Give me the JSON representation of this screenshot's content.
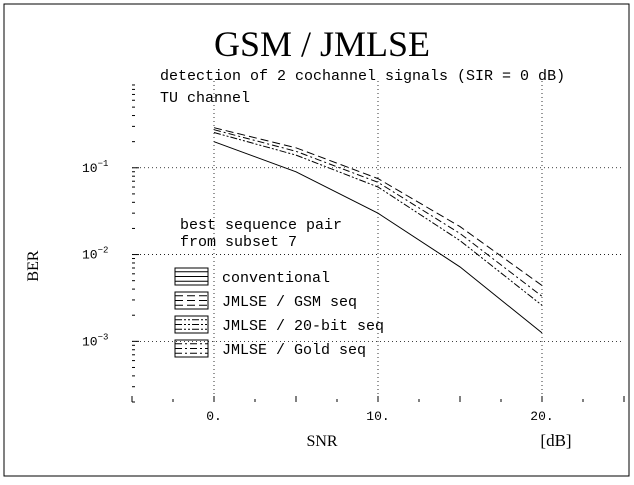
{
  "chart_data": {
    "type": "line",
    "title": "GSM / JMLSE",
    "subtitle_lines": [
      "detection of 2 cochannel signals (SIR = 0 dB)",
      "TU channel"
    ],
    "annotation_lines": [
      "best sequence pair",
      "from subset 7"
    ],
    "xlabel": "SNR",
    "xunit": "[dB]",
    "ylabel": "BER",
    "x_ticks": [
      "0.",
      "10.",
      "20."
    ],
    "x_tick_values": [
      0,
      10,
      20
    ],
    "y_ticks": [
      {
        "base": "10",
        "exp": "−1",
        "value": 0.1
      },
      {
        "base": "10",
        "exp": "−2",
        "value": 0.01
      },
      {
        "base": "10",
        "exp": "−3",
        "value": 0.001
      }
    ],
    "xlim": [
      -5,
      25
    ],
    "ylim": [
      0.0002,
      1
    ],
    "y_scale": "log",
    "grid": true,
    "legend_position": "lower-left",
    "x": [
      0,
      5,
      10,
      15,
      20
    ],
    "series": [
      {
        "name": "conventional",
        "dash": "solid",
        "values": [
          0.2,
          0.09,
          0.03,
          0.0072,
          0.00125
        ]
      },
      {
        "name": "JMLSE / GSM seq",
        "dash": "dashed",
        "values": [
          0.29,
          0.17,
          0.075,
          0.021,
          0.0044
        ]
      },
      {
        "name": "JMLSE / 20-bit seq",
        "dash": "dashdotdot",
        "values": [
          0.255,
          0.14,
          0.06,
          0.0145,
          0.0026
        ]
      },
      {
        "name": "JMLSE / Gold seq",
        "dash": "dashdot",
        "values": [
          0.275,
          0.155,
          0.068,
          0.0175,
          0.0033
        ]
      }
    ]
  }
}
